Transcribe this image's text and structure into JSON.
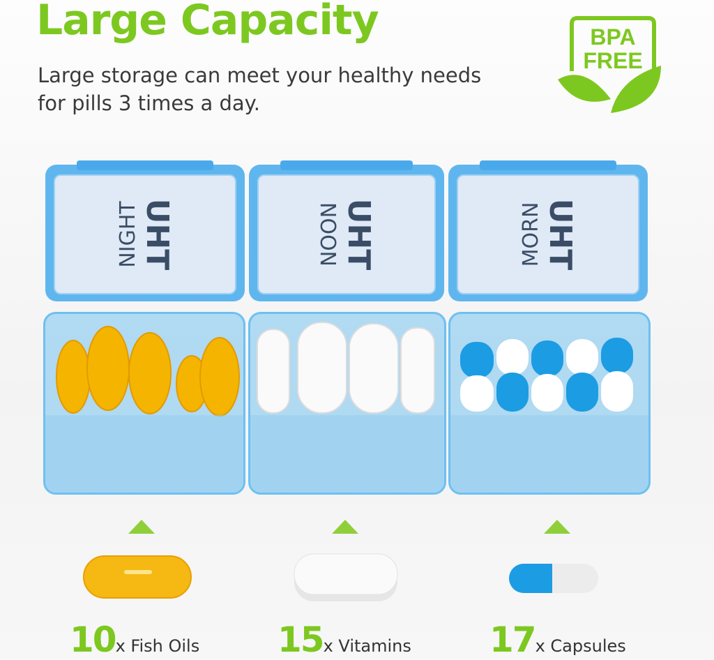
{
  "header": {
    "title": "Large Capacity",
    "subtitle": "Large storage can meet your healthy needs for pills 3 times a day."
  },
  "badge": {
    "line1": "BPA",
    "line2": "FREE",
    "icon": "leaf-icon"
  },
  "colors": {
    "accent": "#7dc820",
    "case_blue": "#5fb6ee",
    "fish_oil": "#f5b400",
    "capsule_blue": "#1c9ce3"
  },
  "compartments": [
    {
      "brand": "UHT",
      "label": "NIGHT",
      "count": "10",
      "unit": "x Fish Oils",
      "pill": "fish-oil"
    },
    {
      "brand": "UHT",
      "label": "NOON",
      "count": "15",
      "unit": "x Vitamins",
      "pill": "vitamin-tablet"
    },
    {
      "brand": "UHT",
      "label": "MORN",
      "count": "17",
      "unit": "x Capsules",
      "pill": "capsule"
    }
  ]
}
